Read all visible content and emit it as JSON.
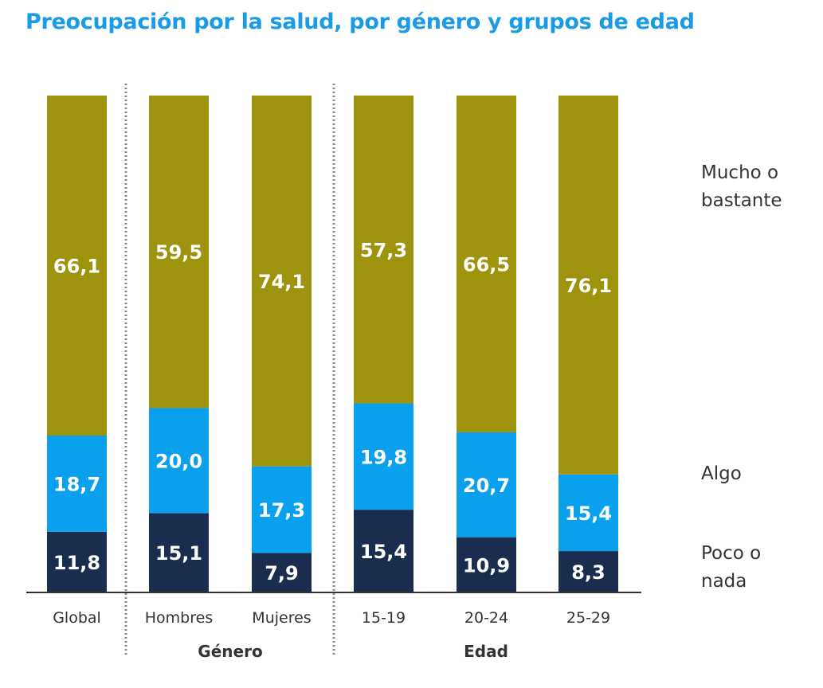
{
  "chart_data": {
    "type": "bar",
    "stacked": true,
    "title": "Preocupación por la salud, por género y grupos de edad",
    "xlabel": "",
    "ylabel": "",
    "ylim": [
      0,
      100
    ],
    "grid": false,
    "categories": [
      "Global",
      "Hombres",
      "Mujeres",
      "15-19",
      "20-24",
      "25-29"
    ],
    "groups": [
      {
        "name": "",
        "categories": [
          "Global"
        ]
      },
      {
        "name": "Género",
        "categories": [
          "Hombres",
          "Mujeres"
        ]
      },
      {
        "name": "Edad",
        "categories": [
          "15-19",
          "20-24",
          "25-29"
        ]
      }
    ],
    "series": [
      {
        "name": "Poco o nada",
        "color": "#1b2d4f",
        "values": [
          11.8,
          15.1,
          7.9,
          15.4,
          10.9,
          8.3
        ],
        "labels": [
          "11,8",
          "15,1",
          "7,9",
          "15,4",
          "10,9",
          "8,3"
        ]
      },
      {
        "name": "Algo",
        "color": "#0aa0ee",
        "values": [
          18.7,
          20.0,
          17.3,
          19.8,
          20.7,
          15.4
        ],
        "labels": [
          "18,7",
          "20,0",
          "17,3",
          "19,8",
          "20,7",
          "15,4"
        ]
      },
      {
        "name": "Mucho o bastante",
        "color": "#9d930d",
        "values": [
          66.1,
          59.5,
          74.1,
          57.3,
          66.5,
          76.1
        ],
        "labels": [
          "66,1",
          "59,5",
          "74,1",
          "57,3",
          "66,5",
          "76,1"
        ]
      }
    ],
    "legend": {
      "placement": "right",
      "entries": [
        {
          "series": "Mucho o bastante",
          "lines": [
            "Mucho o",
            "bastante"
          ]
        },
        {
          "series": "Algo",
          "lines": [
            "Algo"
          ]
        },
        {
          "series": "Poco o nada",
          "lines": [
            "Poco o",
            "nada"
          ]
        }
      ]
    }
  }
}
